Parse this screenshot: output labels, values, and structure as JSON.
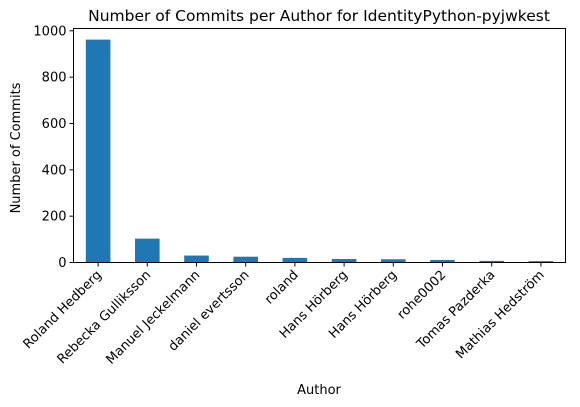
{
  "chart_data": {
    "type": "bar",
    "title": "Number of Commits per Author for IdentityPython-pyjwkest",
    "xlabel": "Author",
    "ylabel": "Number of Commits",
    "categories": [
      "Roland Hedberg",
      "Rebecka Gulliksson",
      "Manuel Jeckelmann",
      "daniel evertsson",
      "roland",
      "Hans Hörberg",
      "Hans Hörberg",
      "rohe0002",
      "Tomas Pazderka",
      "Mathias Hedström"
    ],
    "values": [
      962,
      103,
      30,
      25,
      20,
      15,
      14,
      11,
      7,
      6
    ],
    "ylim": [
      0,
      1010
    ],
    "yticks": [
      0,
      200,
      400,
      600,
      800,
      1000
    ],
    "bar_color": "#1f77b4",
    "grid": false,
    "legend": "none"
  }
}
